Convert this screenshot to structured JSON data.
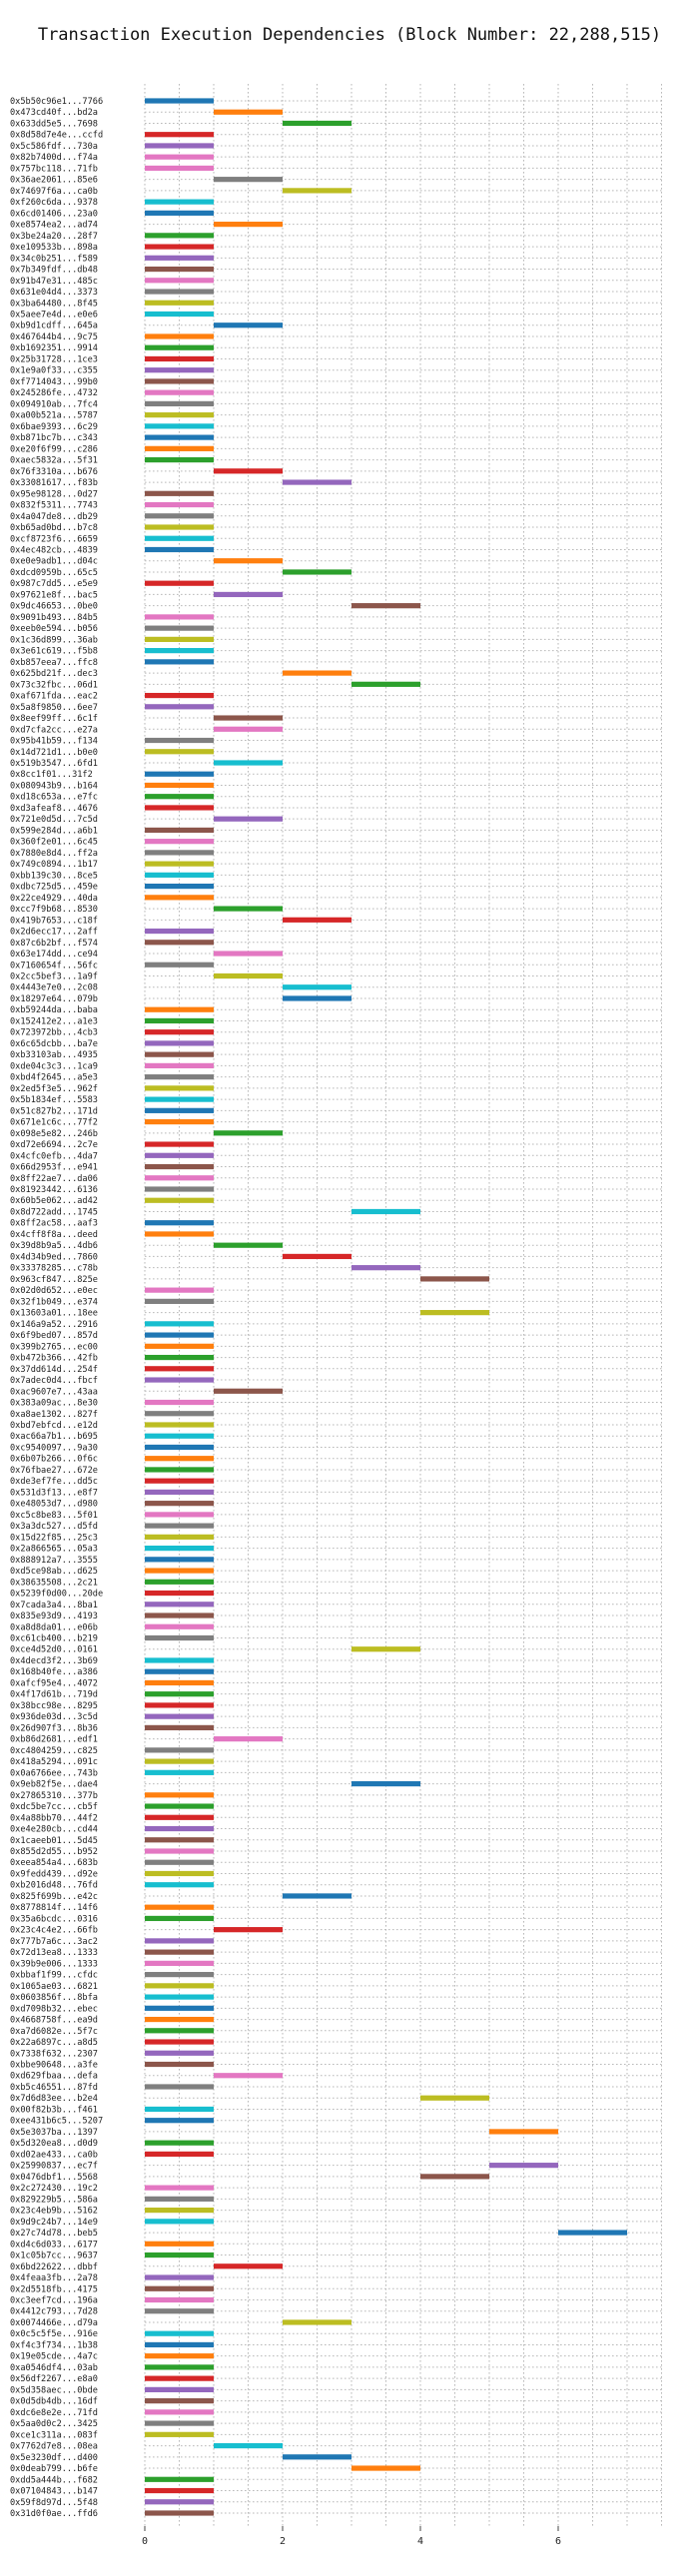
{
  "chart_data": {
    "type": "bar",
    "orientation": "horizontal",
    "title": "Transaction Execution Dependencies (Block Number: 22,288,515)",
    "xlabel": "",
    "ylabel": "",
    "xlim": [
      0,
      7.5
    ],
    "xticks": [
      0,
      2,
      4,
      6
    ],
    "grid": true,
    "palette": [
      "#1f77b4",
      "#ff7f0e",
      "#2ca02c",
      "#d62728",
      "#9467bd",
      "#8c564b",
      "#e377c2",
      "#7f7f7f",
      "#bcbd22",
      "#17becf"
    ],
    "transactions": [
      "0x5b50c96e1...7766",
      "0x473cd40f...bd2a",
      "0x633dd5e5...7698",
      "0x8d58d7e4e...ccfd",
      "0x5c586fdf...730a",
      "0x82b7400d...f74a",
      "0x757bc118...71fb",
      "0x36ae2061...85e6",
      "0x74697f6a...ca0b",
      "0xf260c6da...9378",
      "0x6cd01406...23a0",
      "0xe8574ea2...ad74",
      "0x3be24a20...28f7",
      "0xe109533b...898a",
      "0x34c0b251...f589",
      "0x7b349fdf...db48",
      "0x91b47e31...485c",
      "0x631e04d4...3373",
      "0x3ba64480...8f45",
      "0x5aee7e4d...e0e6",
      "0xb9d1cdff...645a",
      "0x467644b4...9c75",
      "0xb1692351...9914",
      "0x25b31728...1ce3",
      "0x1e9a0f33...c355",
      "0xf7714043...99b0",
      "0x245286fe...4732",
      "0x094910ab...7fc4",
      "0xa00b521a...5787",
      "0x6bae9393...6c29",
      "0xb871bc7b...c343",
      "0xe20f6f99...c286",
      "0xaec5832a...5f31",
      "0x76f3310a...b676",
      "0x33081617...f83b",
      "0x95e98128...0d27",
      "0x832f5311...7743",
      "0x4a047de8...db29",
      "0xb65ad0bd...b7c8",
      "0xcf8723f6...6659",
      "0x4ec482cb...4839",
      "0xe0e9adb1...d04c",
      "0xdcd0959b...65c5",
      "0x987c7dd5...e5e9",
      "0x97621e8f...bac5",
      "0x9dc46653...0be0",
      "0x9091b493...84b5",
      "0xeeb0e594...b056",
      "0x1c36d899...36ab",
      "0x3e61c619...f5b8",
      "0xb857eea7...ffc8",
      "0x625bd21f...dec3",
      "0x73c32fbc...06d1",
      "0xaf671fda...eac2",
      "0x5a8f9850...6ee7",
      "0x8eef99ff...6c1f",
      "0xd7cfa2cc...e27a",
      "0x95b41b59...f134",
      "0x14d721d1...b0e0",
      "0x519b3547...6fd1",
      "0x8cc1f01...31f2",
      "0x080943b9...b164",
      "0xd18c653a...e7fc",
      "0xd3afeaf8...4676",
      "0x721e0d5d...7c5d",
      "0x599e284d...a6b1",
      "0x360f2e01...6c45",
      "0x7880e8d4...ff2a",
      "0x749c0894...1b17",
      "0xbb139c30...8ce5",
      "0xdbc725d5...459e",
      "0x22ce4929...40da",
      "0xcc7f9b68...8530",
      "0x419b7653...c18f",
      "0x2d6ecc17...2aff",
      "0x87c6b2bf...f574",
      "0x63e174dd...ce94",
      "0x7160654f...56fc",
      "0x2cc5bef3...1a9f",
      "0x4443e7e0...2c08",
      "0x18297e64...079b",
      "0xb59244da...baba",
      "0x152412e2...a1e3",
      "0x723972bb...4cb3",
      "0x6c65dcbb...ba7e",
      "0xb33103ab...4935",
      "0xde04c3c3...1ca9",
      "0xbd4f2645...a5e3",
      "0x2ed5f3e5...962f",
      "0x5b1834ef...5583",
      "0x51c827b2...171d",
      "0x671e1c6c...77f2",
      "0x098e5e82...246b",
      "0xd72e6694...2c7e",
      "0x4cfc0efb...4da7",
      "0x66d2953f...e941",
      "0x8ff22ae7...da06",
      "0x81923442...6136",
      "0x60b5e062...ad42",
      "0x8d722add...1745",
      "0x8ff2ac58...aaf3",
      "0x4cff8f8a...deed",
      "0x39d8b9a5...4db6",
      "0x4d34b9ed...7860",
      "0x33378285...c78b",
      "0x963cf847...825e",
      "0x02d0d652...e0ec",
      "0x32f1b049...e374",
      "0x13603a01...18ee",
      "0x146a9a52...2916",
      "0x6f9bed07...857d",
      "0x399b2765...ec00",
      "0xb472b366...42fb",
      "0x37dd614d...254f",
      "0x7adec0d4...fbcf",
      "0xac9607e7...43aa",
      "0x383a09ac...8e30",
      "0xa8ae1302...827f",
      "0xbd7ebfcd...e12d",
      "0xac66a7b1...b695",
      "0xc9540097...9a30",
      "0x6b07b266...0f6c",
      "0x76fbae27...672e",
      "0xde3ef7fe...dd5c",
      "0x531d3f13...e8f7",
      "0xe48053d7...d980",
      "0xc5c8be83...5f01",
      "0x3a3dc527...d5fd",
      "0x15d22f85...25c3",
      "0x2a866565...05a3",
      "0x888912a7...3555",
      "0xd5ce98ab...d625",
      "0x38635508...2c21",
      "0x5239f0d00...20de",
      "0x7cada3a4...8ba1",
      "0x835e93d9...4193",
      "0xa8d8da01...e06b",
      "0xc61cb400...b219",
      "0xce4d52d0...0161",
      "0x4decd3f2...3b69",
      "0x168b40fe...a386",
      "0xafcf95e4...4072",
      "0x4f17d61b...719d",
      "0x38bcc98e...8295",
      "0x936de03d...3c5d",
      "0x26d907f3...8b36",
      "0xb86d2681...edf1",
      "0xc4804259...c825",
      "0x418a5294...091c",
      "0x0a6766ee...743b",
      "0x9eb82f5e...dae4",
      "0x27865310...377b",
      "0xdc5be7cc...cb5f",
      "0x4a88bb70...44f2",
      "0xe4e280cb...cd44",
      "0x1caeeb01...5d45",
      "0x855d2d55...b952",
      "0xeea854a4...683b",
      "0x9fedd439...d92e",
      "0xb2016d48...76fd",
      "0x825f699b...e42c",
      "0x8778814f...14f6",
      "0x35a6bcdc...0316",
      "0x23c4c4e2...66fb",
      "0x777b7a6c...3ac2",
      "0x72d13ea8...1333",
      "0x39b9e006...1333",
      "0xbbaf1f99...cfdc",
      "0x1065ae03...6821",
      "0x0603856f...8bfa",
      "0xd7098b32...ebec",
      "0x4668758f...ea9d",
      "0xa7d6082e...5f7c",
      "0x22a6897c...a8d5",
      "0x7338f632...2307",
      "0xbbe90648...a3fe",
      "0xd629fbaa...defa",
      "0xb5c46551...87fd",
      "0x7d6d83ee...b2e4",
      "0x00f82b3b...f461",
      "0xee431b6c5...5207",
      "0x5e3037ba...1397",
      "0x5d320ea8...d0d9",
      "0xd02ae433...ca0b",
      "0x25990837...ec7f",
      "0x0476dbf1...5568",
      "0x2c272430...19c2",
      "0x829229b5...586a",
      "0x23c4eb9b...5162",
      "0x9d9c24b7...14e9",
      "0x27c74d78...beb5",
      "0xd4c6d033...6177",
      "0x1c05b7cc...9637",
      "0x6bd22622...dbbf",
      "0x4feaa3fb...2a78",
      "0x2d5518fb...4175",
      "0xc3eef7cd...196a",
      "0x4412c793...7d28",
      "0x0074466e...d79a",
      "0x0c5c5f5e...916e",
      "0xf4c3f734...1b38",
      "0x19e05cde...4a7c",
      "0xa0546df4...03ab",
      "0x56df2267...e8a0",
      "0x5d358aec...0bde",
      "0x0d5db4db...16df",
      "0xdc6e8e2e...71fd",
      "0x5aa0d0c2...3425",
      "0xce1c311a...083f",
      "0x7762d7e8...08ea",
      "0x5e3230df...d400",
      "0x0deab799...b6fe",
      "0xdd5a444b...f682",
      "0x07104843...b147",
      "0x59f8d97d...5f48",
      "0x31d0f0ae...ffd6"
    ],
    "start": [
      0,
      1,
      2,
      0,
      0,
      0,
      0,
      1,
      2,
      0,
      0,
      1,
      0,
      0,
      0,
      0,
      0,
      0,
      0,
      0,
      1,
      0,
      0,
      0,
      0,
      0,
      0,
      0,
      0,
      0,
      0,
      0,
      0,
      1,
      2,
      0,
      0,
      0,
      0,
      0,
      0,
      1,
      2,
      0,
      1,
      3,
      0,
      0,
      0,
      0,
      0,
      2,
      3,
      0,
      0,
      1,
      1,
      0,
      0,
      1,
      0,
      0,
      0,
      0,
      1,
      0,
      0,
      0,
      0,
      0,
      0,
      0,
      1,
      2,
      0,
      0,
      1,
      0,
      1,
      2,
      2,
      0,
      0,
      0,
      0,
      0,
      0,
      0,
      0,
      0,
      0,
      0,
      1,
      0,
      0,
      0,
      0,
      0,
      0,
      3,
      0,
      0,
      1,
      2,
      3,
      4,
      0,
      0,
      4,
      0,
      0,
      0,
      0,
      0,
      0,
      1,
      0,
      0,
      0,
      0,
      0,
      0,
      0,
      0,
      0,
      0,
      0,
      0,
      0,
      0,
      0,
      0,
      0,
      0,
      0,
      0,
      0,
      0,
      3,
      0,
      0,
      0,
      0,
      0,
      0,
      0,
      1,
      0,
      0,
      0,
      3,
      0,
      0,
      0,
      0,
      0,
      0,
      0,
      0,
      0,
      2,
      0,
      0,
      1,
      0,
      0,
      0,
      0,
      0,
      0,
      0,
      0,
      0,
      0,
      0,
      0,
      1,
      0,
      4,
      0,
      0,
      5,
      0,
      0,
      5,
      4,
      0,
      0,
      0,
      0,
      6,
      0,
      0,
      1,
      0,
      0,
      0,
      0,
      2,
      0,
      0,
      0,
      0,
      0,
      0,
      0,
      0,
      0,
      0,
      1,
      2,
      3,
      0,
      0,
      0,
      0,
      0
    ],
    "colors": [
      0,
      1,
      2,
      3,
      4,
      6,
      6,
      7,
      8,
      9,
      0,
      1,
      2,
      3,
      4,
      5,
      6,
      7,
      8,
      9,
      0,
      1,
      2,
      3,
      4,
      5,
      6,
      7,
      8,
      9,
      0,
      1,
      2,
      3,
      4,
      5,
      6,
      7,
      8,
      9,
      0,
      1,
      2,
      3,
      4,
      5,
      6,
      7,
      8,
      9,
      0,
      1,
      2,
      3,
      4,
      5,
      6,
      7,
      8,
      9,
      0,
      1,
      2,
      3,
      4,
      5,
      6,
      7,
      8,
      9,
      0,
      1,
      2,
      3,
      4,
      5,
      6,
      7,
      8,
      9,
      0,
      1,
      2,
      3,
      4,
      5,
      6,
      7,
      8,
      9,
      0,
      1,
      2,
      3,
      4,
      5,
      6,
      7,
      8,
      9,
      0,
      1,
      2,
      3,
      4,
      5,
      6,
      7,
      8,
      9,
      0,
      1,
      2,
      3,
      4,
      5,
      6,
      7,
      8,
      9,
      0,
      1,
      2,
      3,
      4,
      5,
      6,
      7,
      8,
      9,
      0,
      1,
      2,
      3,
      4,
      5,
      6,
      7,
      8,
      9,
      0,
      1,
      2,
      3,
      4,
      5,
      6,
      7,
      8,
      9,
      0,
      1,
      2,
      3,
      4,
      5,
      6,
      7,
      8,
      9,
      0,
      1,
      2,
      3,
      4,
      5,
      6,
      7,
      8,
      9,
      0,
      1,
      2,
      3,
      4,
      5,
      6,
      7,
      8,
      9,
      0,
      1,
      2,
      3,
      4,
      5,
      6,
      7,
      8,
      9,
      0,
      1,
      2,
      3,
      4,
      5,
      6,
      7,
      8,
      9,
      0,
      1,
      2,
      3,
      4,
      5,
      6,
      7,
      8,
      9,
      0,
      1,
      2,
      3,
      4,
      5,
      6,
      7,
      8,
      9,
      0,
      1,
      2,
      3,
      4,
      5,
      6,
      7,
      8,
      9,
      0,
      1
    ]
  }
}
